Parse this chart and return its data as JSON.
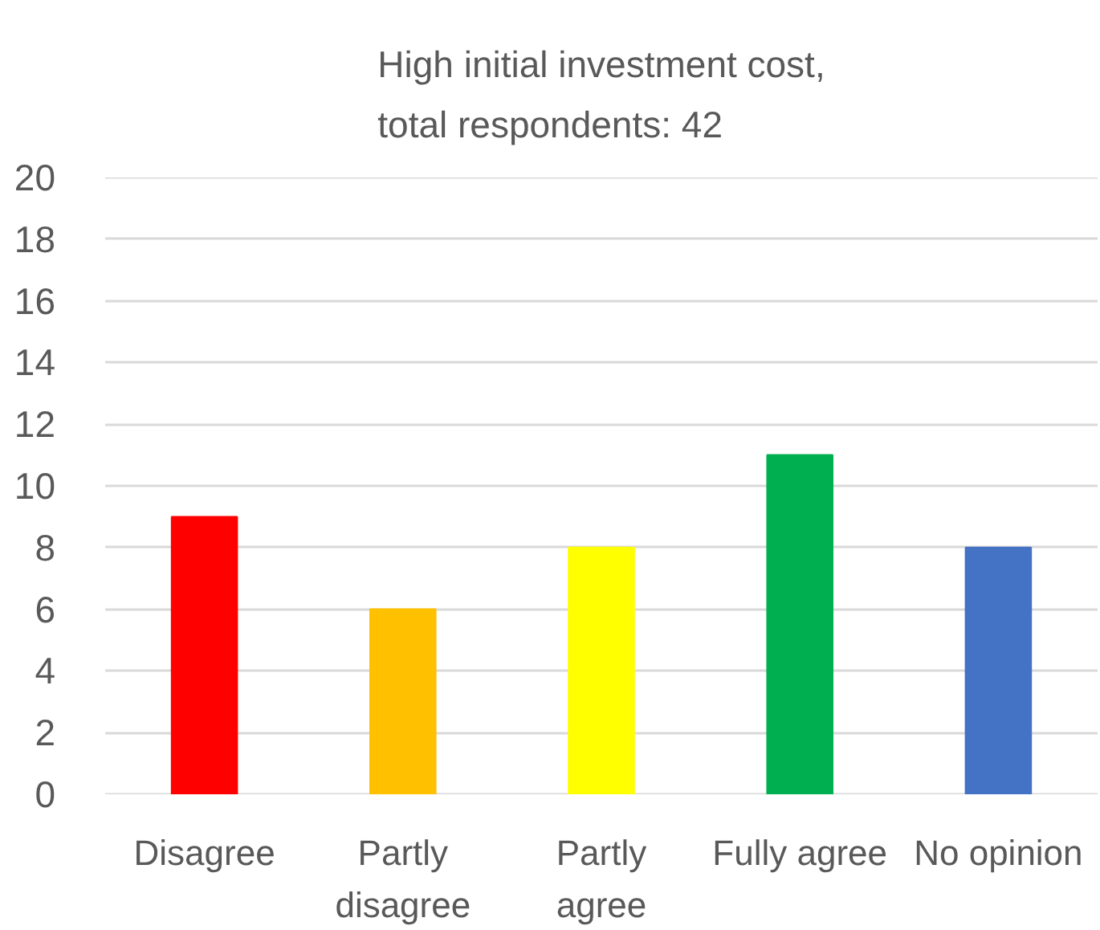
{
  "chart_data": {
    "type": "bar",
    "title": "High initial investment cost, total respondents: 42",
    "categories": [
      "Disagree",
      "Partly disagree",
      "Partly agree",
      "Fully agree",
      "No opinion"
    ],
    "values": [
      9,
      6,
      8,
      11,
      8
    ],
    "colors": [
      "#ff0000",
      "#ffc000",
      "#ffff00",
      "#00b050",
      "#4472c4"
    ],
    "ylim": [
      0,
      20
    ],
    "yticks": [
      0,
      2,
      4,
      6,
      8,
      10,
      12,
      14,
      16,
      18,
      20
    ],
    "grid": "y"
  }
}
